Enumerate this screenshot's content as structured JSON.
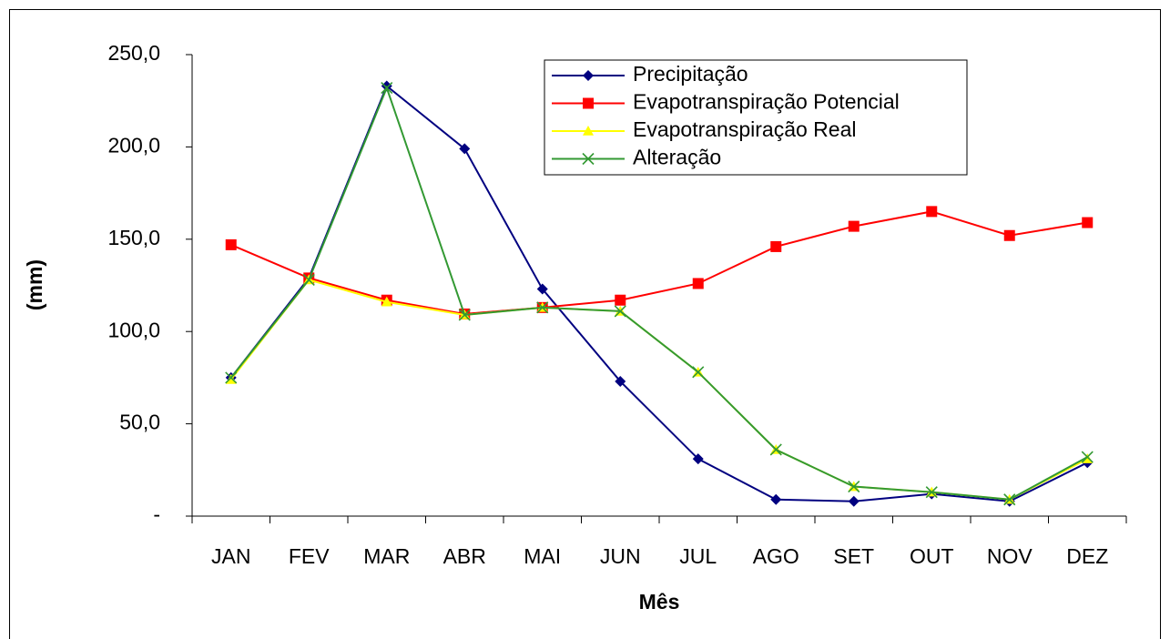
{
  "chart_data": {
    "type": "line",
    "xlabel": "Mês",
    "ylabel": "(mm)",
    "categories": [
      "JAN",
      "FEV",
      "MAR",
      "ABR",
      "MAI",
      "JUN",
      "JUL",
      "AGO",
      "SET",
      "OUT",
      "NOV",
      "DEZ"
    ],
    "series": [
      {
        "name": "Precipitação",
        "color": "#000080",
        "marker": "diamond",
        "values": [
          75,
          129,
          233,
          199,
          123,
          73,
          31,
          9,
          8,
          12,
          8,
          29
        ]
      },
      {
        "name": "Evapotranspiração Potencial",
        "color": "#ff0000",
        "marker": "square",
        "values": [
          147,
          129,
          117,
          109.5,
          113,
          117,
          126,
          146,
          157,
          165,
          152,
          159
        ]
      },
      {
        "name": "Evapotranspiração Real",
        "color": "#ffff00",
        "marker": "triangle",
        "values": [
          74,
          128,
          116,
          109,
          113,
          111,
          78,
          36,
          16,
          13,
          9,
          31
        ]
      },
      {
        "name": "Alteração",
        "color": "#339933",
        "marker": "x",
        "values": [
          75,
          128,
          232,
          109,
          113,
          111,
          78,
          36,
          16,
          13,
          9,
          32
        ]
      }
    ],
    "ylim": [
      0,
      250
    ],
    "yticks": [
      {
        "value": 0,
        "label": "-"
      },
      {
        "value": 50,
        "label": "50,0"
      },
      {
        "value": 100,
        "label": "100,0"
      },
      {
        "value": 150,
        "label": "150,0"
      },
      {
        "value": 200,
        "label": "200,0"
      },
      {
        "value": 250,
        "label": "250,0"
      }
    ],
    "legend": "top-right",
    "grid": false
  }
}
